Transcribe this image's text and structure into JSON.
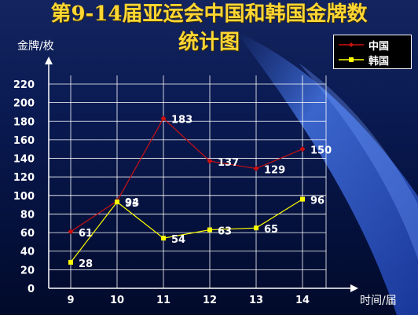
{
  "title_line1": "第9-14届亚运会中国和韩国金牌数",
  "title_line2": "统计图",
  "ylabel": "金牌/枚",
  "xlabel": "时间/届",
  "legend": [
    {
      "label": "中国",
      "color": "#cc1111"
    },
    {
      "label": "韩国",
      "color": "#ffff00"
    }
  ],
  "chart_data": {
    "type": "line",
    "title": "第9-14届亚运会中国和韩国金牌数统计图",
    "xlabel": "时间/届",
    "ylabel": "金牌/枚",
    "categories": [
      "9",
      "10",
      "11",
      "12",
      "13",
      "14"
    ],
    "ylim": [
      0,
      220
    ],
    "yticks": [
      0,
      20,
      40,
      60,
      80,
      100,
      120,
      140,
      160,
      180,
      200,
      220
    ],
    "grid": true,
    "legend_position": "top-right",
    "series": [
      {
        "name": "中国",
        "color": "#cc1111",
        "values": [
          61,
          94,
          183,
          137,
          129,
          150
        ],
        "labels": [
          "61",
          "94",
          "183",
          "137",
          "129",
          "150"
        ]
      },
      {
        "name": "韩国",
        "color": "#ffff00",
        "values": [
          28,
          93,
          54,
          63,
          65,
          96
        ],
        "labels": [
          "28",
          "93",
          "54",
          "63",
          "65",
          "96"
        ]
      }
    ]
  }
}
